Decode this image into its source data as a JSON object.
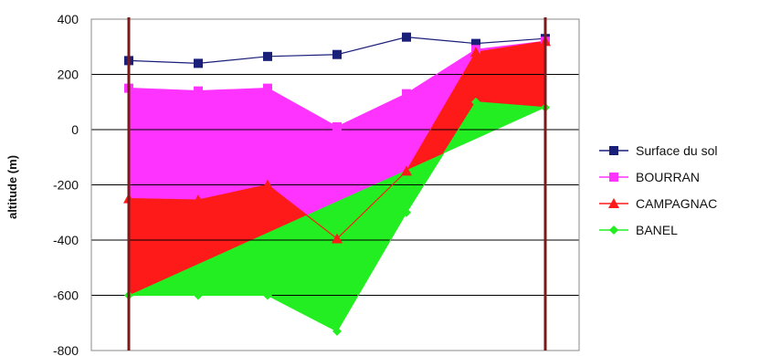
{
  "chart_data": {
    "type": "area",
    "ylabel": "altitude (m)",
    "ylim": [
      -800,
      400
    ],
    "yticks": [
      400,
      200,
      0,
      -200,
      -400,
      -600,
      -800
    ],
    "grid": true,
    "legend_position": "right",
    "x": [
      1,
      2,
      3,
      4,
      5,
      6,
      7
    ],
    "series": [
      {
        "name": "Surface du sol",
        "color": "#1a1f7a",
        "marker": "square",
        "values": [
          250,
          240,
          265,
          272,
          335,
          312,
          330
        ]
      },
      {
        "name": "BOURRAN",
        "color": "#ff33ff",
        "marker": "square",
        "values": [
          150,
          140,
          150,
          10,
          130,
          290,
          320
        ]
      },
      {
        "name": "CAMPAGNAC",
        "color": "#ff1a1a",
        "marker": "triangle",
        "values": [
          -250,
          -255,
          -200,
          -395,
          -150,
          280,
          320
        ]
      },
      {
        "name": "BANEL",
        "color": "#22ee22",
        "marker": "diamond",
        "values": [
          -600,
          -600,
          -600,
          -730,
          -300,
          100,
          80
        ]
      }
    ],
    "vertical_markers": {
      "color": "#7a1a1a",
      "x": [
        1,
        7
      ]
    }
  }
}
